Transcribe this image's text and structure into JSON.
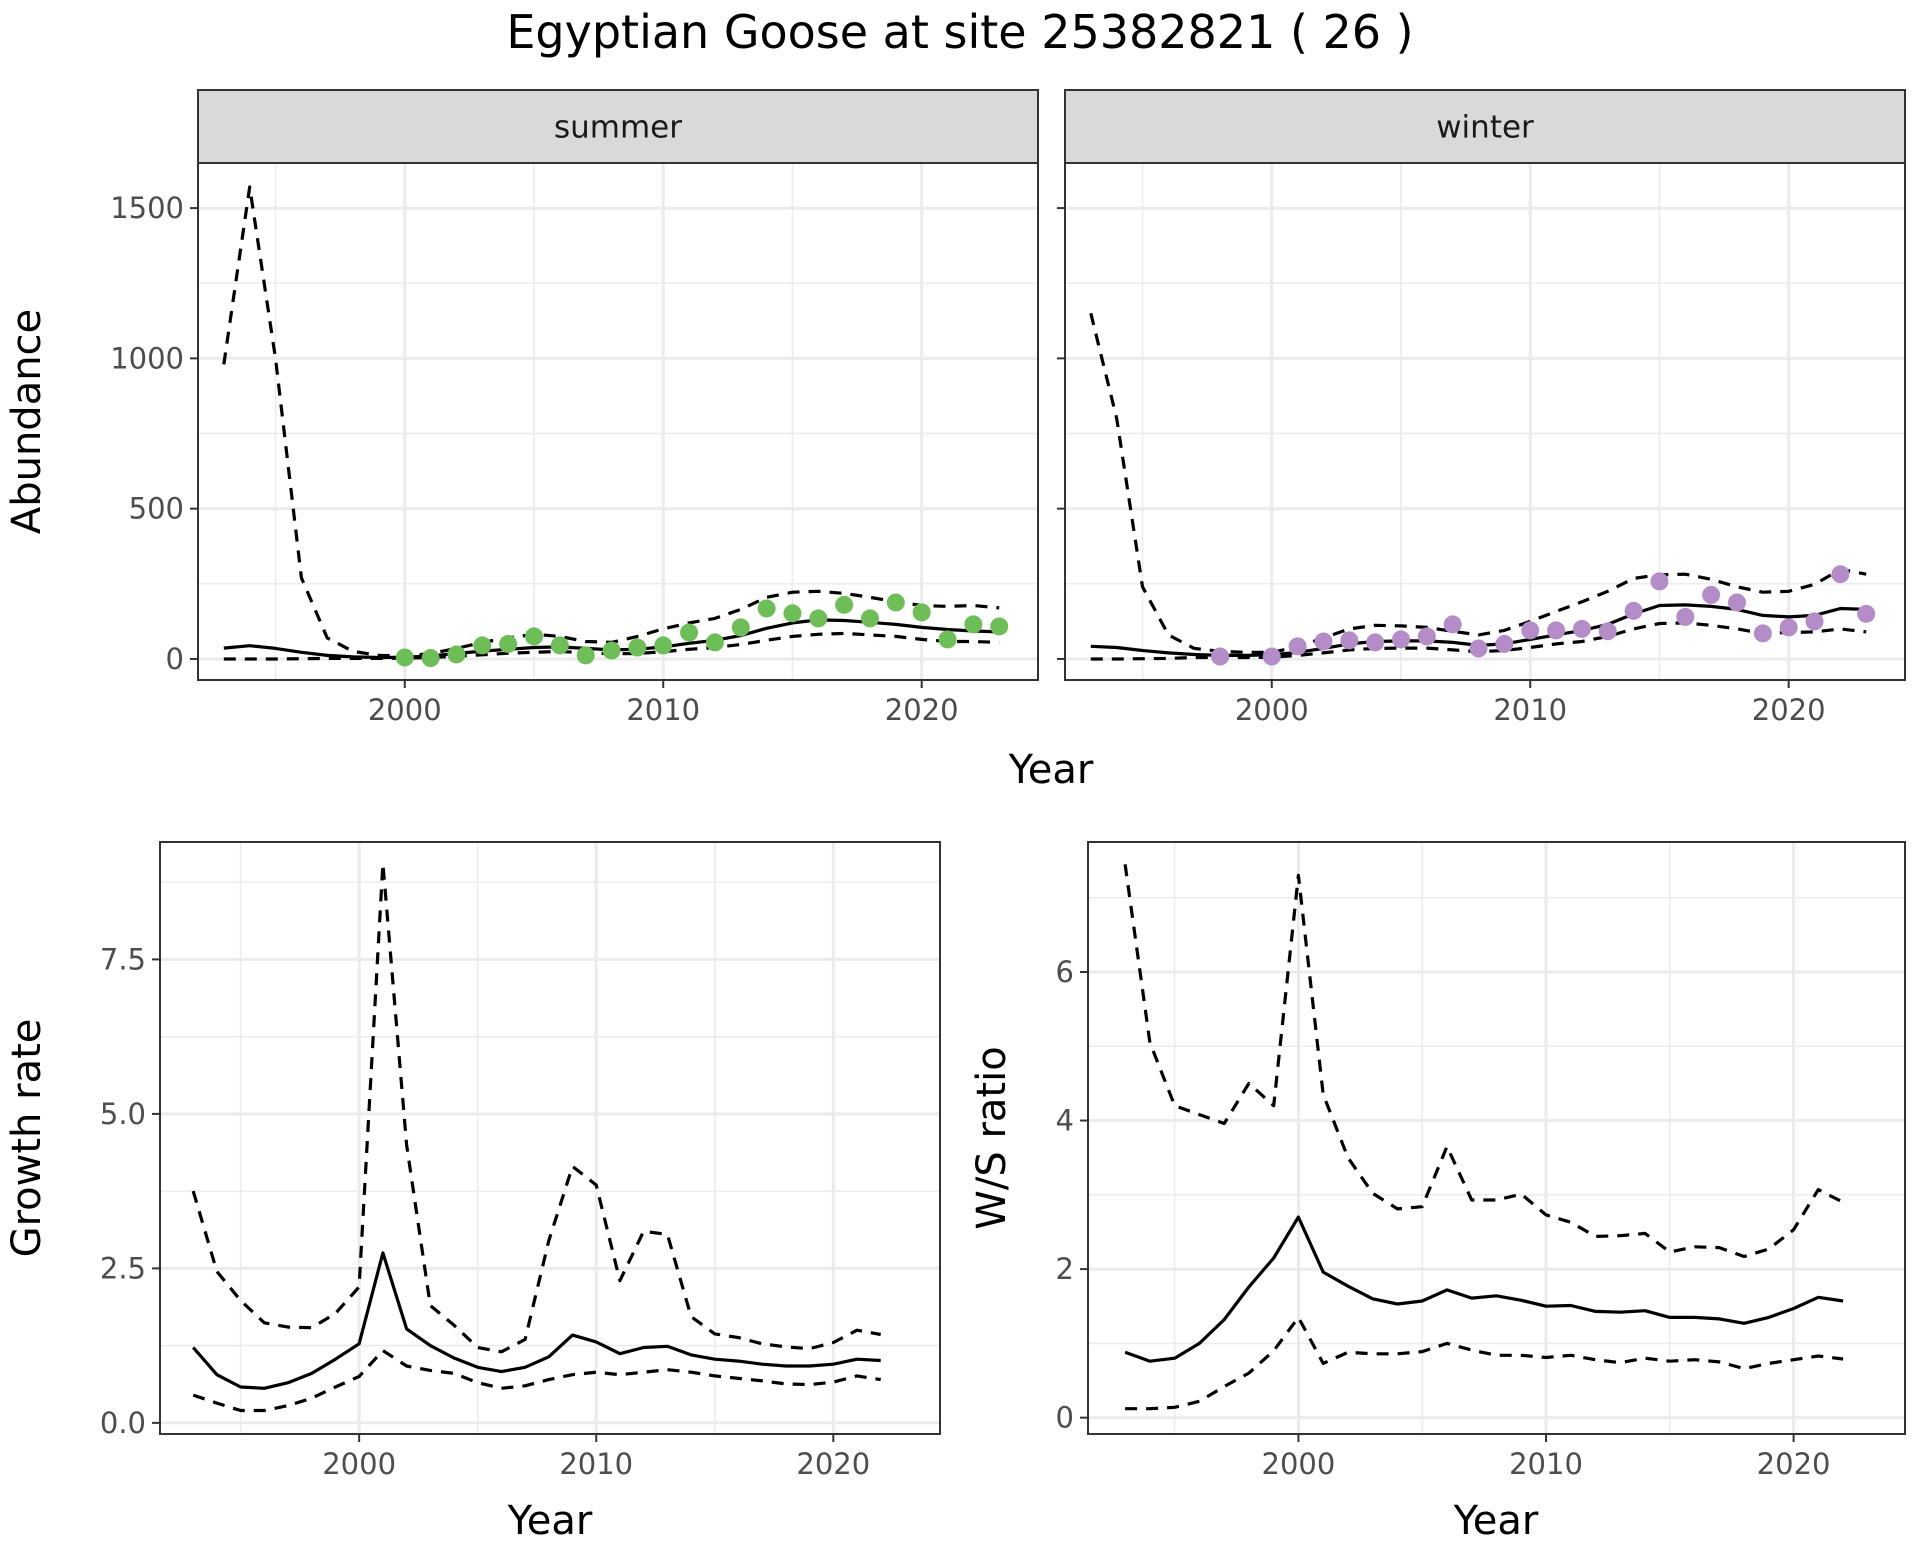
{
  "title": "Egyptian Goose at site 25382821 ( 26 )",
  "colors": {
    "summer_points": "#6ebe57",
    "winter_points": "#b48cc8",
    "line": "#000000",
    "strip_bg": "#d9d9d9",
    "grid": "#ebebeb"
  },
  "chart_data": [
    {
      "type": "line",
      "panel": "summer",
      "strip_label": "summer",
      "xlabel": "Year",
      "ylabel": "Abundance",
      "xlim": [
        1992,
        2024.5
      ],
      "ylim": [
        -70,
        1650
      ],
      "x_ticks": [
        2000,
        2010,
        2020
      ],
      "y_ticks": [
        0,
        500,
        1000,
        1500
      ],
      "grid": true,
      "years": [
        1993,
        1994,
        1995,
        1996,
        1997,
        1998,
        1999,
        2000,
        2001,
        2002,
        2003,
        2004,
        2005,
        2006,
        2007,
        2008,
        2009,
        2010,
        2011,
        2012,
        2013,
        2014,
        2015,
        2016,
        2017,
        2018,
        2019,
        2020,
        2021,
        2022,
        2023
      ],
      "series": [
        {
          "role": "estimate",
          "values": [
            36,
            44,
            35,
            22,
            12,
            7,
            5,
            6,
            10,
            18,
            26,
            32,
            38,
            40,
            35,
            30,
            32,
            40,
            52,
            62,
            78,
            102,
            120,
            130,
            128,
            122,
            115,
            105,
            98,
            93,
            90
          ]
        },
        {
          "role": "upper",
          "values": [
            980,
            1570,
            1000,
            270,
            70,
            25,
            12,
            10,
            18,
            35,
            55,
            70,
            82,
            75,
            58,
            55,
            75,
            100,
            120,
            135,
            165,
            205,
            222,
            225,
            218,
            205,
            190,
            178,
            175,
            178,
            170
          ]
        },
        {
          "role": "lower",
          "values": [
            0,
            0,
            0,
            1,
            2,
            2,
            2,
            3,
            5,
            9,
            14,
            19,
            22,
            25,
            20,
            17,
            18,
            24,
            32,
            38,
            48,
            62,
            75,
            82,
            85,
            80,
            75,
            65,
            58,
            58,
            55
          ]
        }
      ],
      "points": {
        "x": [
          2000,
          2001,
          2002,
          2003,
          2004,
          2005,
          2006,
          2007,
          2008,
          2009,
          2010,
          2011,
          2012,
          2013,
          2014,
          2015,
          2016,
          2017,
          2018,
          2019,
          2020,
          2021,
          2022,
          2023
        ],
        "y": [
          5,
          3,
          15,
          45,
          50,
          75,
          45,
          12,
          28,
          38,
          45,
          88,
          55,
          105,
          168,
          152,
          135,
          180,
          135,
          188,
          155,
          65,
          115,
          108
        ]
      }
    },
    {
      "type": "line",
      "panel": "winter",
      "strip_label": "winter",
      "xlabel": "Year",
      "ylabel": "",
      "xlim": [
        1992,
        2024.5
      ],
      "ylim": [
        -70,
        1650
      ],
      "x_ticks": [
        2000,
        2010,
        2020
      ],
      "y_ticks": [
        0,
        500,
        1000,
        1500
      ],
      "grid": true,
      "years": [
        1993,
        1994,
        1995,
        1996,
        1997,
        1998,
        1999,
        2000,
        2001,
        2002,
        2003,
        2004,
        2005,
        2006,
        2007,
        2008,
        2009,
        2010,
        2011,
        2012,
        2013,
        2014,
        2015,
        2016,
        2017,
        2018,
        2019,
        2020,
        2021,
        2022,
        2023
      ],
      "series": [
        {
          "role": "estimate",
          "values": [
            42,
            38,
            28,
            20,
            15,
            12,
            12,
            14,
            22,
            35,
            50,
            58,
            60,
            60,
            55,
            45,
            50,
            65,
            80,
            95,
            115,
            150,
            178,
            180,
            175,
            165,
            145,
            140,
            145,
            168,
            165
          ]
        },
        {
          "role": "upper",
          "values": [
            1150,
            800,
            240,
            80,
            35,
            25,
            22,
            22,
            40,
            70,
            100,
            112,
            110,
            105,
            92,
            80,
            95,
            125,
            158,
            190,
            225,
            268,
            280,
            282,
            265,
            240,
            222,
            225,
            248,
            298,
            282
          ]
        },
        {
          "role": "lower",
          "values": [
            0,
            0,
            1,
            2,
            5,
            5,
            5,
            6,
            12,
            20,
            30,
            35,
            36,
            36,
            30,
            24,
            28,
            38,
            50,
            58,
            75,
            100,
            118,
            120,
            112,
            100,
            85,
            88,
            90,
            100,
            90
          ]
        }
      ],
      "points": {
        "x": [
          1998,
          2000,
          2001,
          2002,
          2003,
          2004,
          2005,
          2006,
          2007,
          2008,
          2009,
          2010,
          2011,
          2012,
          2013,
          2014,
          2015,
          2016,
          2017,
          2018,
          2019,
          2020,
          2021,
          2022,
          2023
        ],
        "y": [
          8,
          8,
          42,
          58,
          62,
          55,
          65,
          75,
          115,
          35,
          50,
          95,
          95,
          100,
          92,
          160,
          258,
          140,
          213,
          188,
          85,
          105,
          125,
          282,
          150
        ]
      }
    },
    {
      "type": "line",
      "panel": "growth",
      "xlabel": "Year",
      "ylabel": "Growth rate",
      "xlim": [
        1991.6,
        2024.5
      ],
      "ylim": [
        -0.18,
        9.4
      ],
      "x_ticks": [
        2000,
        2010,
        2020
      ],
      "y_ticks": [
        0.0,
        2.5,
        5.0,
        7.5
      ],
      "y_tick_labels": [
        "0.0",
        "2.5",
        "5.0",
        "7.5"
      ],
      "grid": true,
      "years": [
        1993,
        1994,
        1995,
        1996,
        1997,
        1998,
        1999,
        2000,
        2001,
        2002,
        2003,
        2004,
        2005,
        2006,
        2007,
        2008,
        2009,
        2010,
        2011,
        2012,
        2013,
        2014,
        2015,
        2016,
        2017,
        2018,
        2019,
        2020,
        2021,
        2022
      ],
      "series": [
        {
          "role": "estimate",
          "values": [
            1.22,
            0.78,
            0.58,
            0.56,
            0.65,
            0.8,
            1.03,
            1.28,
            2.75,
            1.52,
            1.25,
            1.05,
            0.9,
            0.83,
            0.9,
            1.07,
            1.42,
            1.31,
            1.12,
            1.22,
            1.24,
            1.1,
            1.03,
            1.0,
            0.95,
            0.92,
            0.92,
            0.95,
            1.03,
            1.01
          ]
        },
        {
          "role": "upper",
          "values": [
            3.75,
            2.45,
            1.98,
            1.62,
            1.55,
            1.54,
            1.77,
            2.2,
            9.05,
            4.5,
            1.9,
            1.58,
            1.22,
            1.15,
            1.35,
            2.95,
            4.15,
            3.85,
            2.3,
            3.1,
            3.05,
            1.72,
            1.44,
            1.38,
            1.28,
            1.23,
            1.2,
            1.3,
            1.5,
            1.43
          ]
        },
        {
          "role": "lower",
          "values": [
            0.45,
            0.32,
            0.2,
            0.2,
            0.28,
            0.4,
            0.58,
            0.75,
            1.17,
            0.92,
            0.85,
            0.8,
            0.65,
            0.56,
            0.6,
            0.7,
            0.78,
            0.82,
            0.78,
            0.82,
            0.86,
            0.82,
            0.76,
            0.72,
            0.68,
            0.63,
            0.62,
            0.66,
            0.76,
            0.7
          ]
        }
      ]
    },
    {
      "type": "line",
      "panel": "ratio",
      "xlabel": "Year",
      "ylabel": "W/S ratio",
      "xlim": [
        1991.5,
        2024.5
      ],
      "ylim": [
        -0.22,
        7.75
      ],
      "x_ticks": [
        2000,
        2010,
        2020
      ],
      "y_ticks": [
        0,
        2,
        4,
        6
      ],
      "grid": true,
      "years": [
        1993,
        1994,
        1995,
        1996,
        1997,
        1998,
        1999,
        2000,
        2001,
        2002,
        2003,
        2004,
        2005,
        2006,
        2007,
        2008,
        2009,
        2010,
        2011,
        2012,
        2013,
        2014,
        2015,
        2016,
        2017,
        2018,
        2019,
        2020,
        2021,
        2022
      ],
      "series": [
        {
          "role": "estimate",
          "values": [
            0.88,
            0.76,
            0.8,
            1.0,
            1.32,
            1.76,
            2.15,
            2.7,
            1.96,
            1.77,
            1.6,
            1.53,
            1.57,
            1.72,
            1.61,
            1.64,
            1.58,
            1.5,
            1.51,
            1.43,
            1.42,
            1.44,
            1.35,
            1.35,
            1.33,
            1.27,
            1.35,
            1.47,
            1.62,
            1.57
          ]
        },
        {
          "role": "upper",
          "values": [
            7.45,
            5.05,
            4.2,
            4.08,
            3.96,
            4.5,
            4.2,
            7.3,
            4.35,
            3.5,
            3.02,
            2.81,
            2.84,
            3.65,
            2.93,
            2.93,
            3.01,
            2.73,
            2.63,
            2.44,
            2.45,
            2.48,
            2.23,
            2.3,
            2.29,
            2.17,
            2.27,
            2.53,
            3.07,
            2.9
          ]
        },
        {
          "role": "lower",
          "values": [
            0.12,
            0.12,
            0.14,
            0.22,
            0.42,
            0.6,
            0.9,
            1.35,
            0.73,
            0.88,
            0.86,
            0.86,
            0.89,
            1.0,
            0.91,
            0.84,
            0.84,
            0.81,
            0.84,
            0.78,
            0.74,
            0.8,
            0.76,
            0.78,
            0.75,
            0.66,
            0.73,
            0.78,
            0.83,
            0.79
          ]
        }
      ]
    }
  ]
}
